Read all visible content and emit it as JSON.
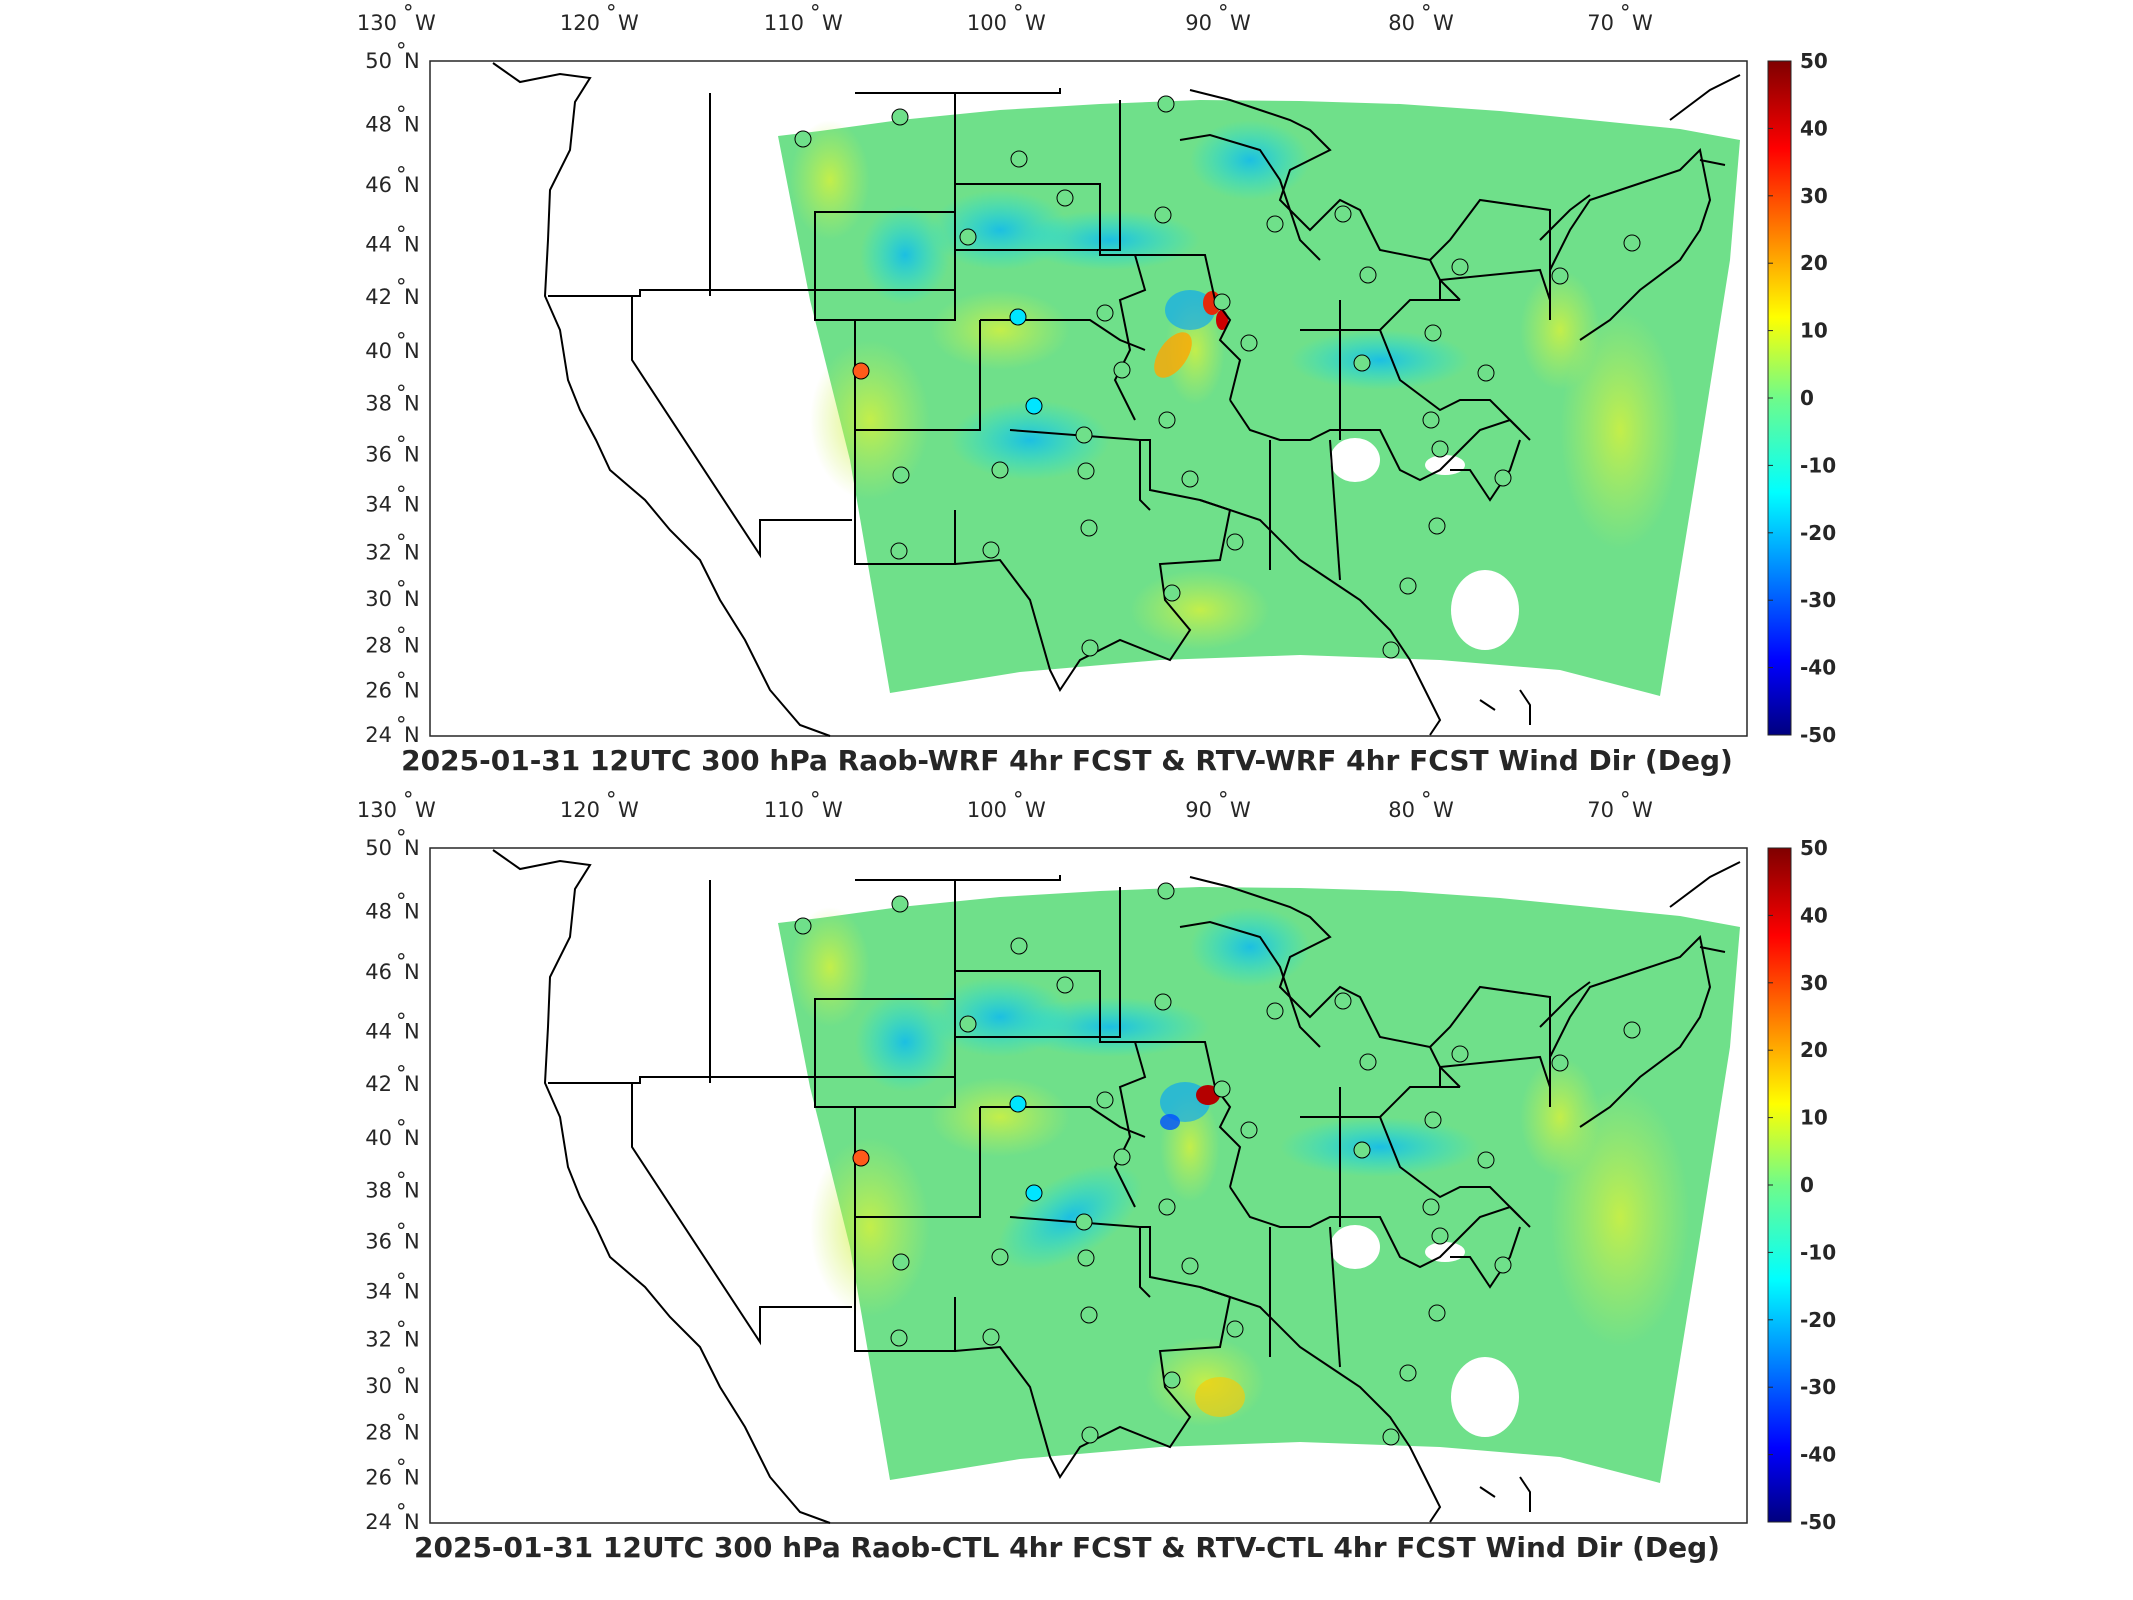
{
  "panels": [
    {
      "title": "2025-01-31 12UTC 300 hPa Raob-WRF 4hr FCST & RTV-WRF 4hr FCST Wind Dir (Deg)",
      "stations_highlight": "orange-red"
    },
    {
      "title": "2025-01-31 12UTC 300 hPa Raob-CTL 4hr FCST & RTV-CTL 4hr FCST Wind Dir (Deg)",
      "stations_highlight": "orange-red"
    }
  ],
  "lon_ticks": [
    {
      "deg": "130",
      "hem": "W"
    },
    {
      "deg": "120",
      "hem": "W"
    },
    {
      "deg": "110",
      "hem": "W"
    },
    {
      "deg": "100",
      "hem": "W"
    },
    {
      "deg": "90",
      "hem": "W"
    },
    {
      "deg": "80",
      "hem": "W"
    },
    {
      "deg": "70",
      "hem": "W"
    }
  ],
  "lat_ticks": [
    {
      "deg": "50",
      "hem": "N"
    },
    {
      "deg": "48",
      "hem": "N"
    },
    {
      "deg": "46",
      "hem": "N"
    },
    {
      "deg": "44",
      "hem": "N"
    },
    {
      "deg": "42",
      "hem": "N"
    },
    {
      "deg": "40",
      "hem": "N"
    },
    {
      "deg": "38",
      "hem": "N"
    },
    {
      "deg": "36",
      "hem": "N"
    },
    {
      "deg": "34",
      "hem": "N"
    },
    {
      "deg": "32",
      "hem": "N"
    },
    {
      "deg": "30",
      "hem": "N"
    },
    {
      "deg": "28",
      "hem": "N"
    },
    {
      "deg": "26",
      "hem": "N"
    },
    {
      "deg": "24",
      "hem": "N"
    }
  ],
  "colorbar": {
    "labels": [
      "50",
      "40",
      "30",
      "20",
      "10",
      "0",
      "-10",
      "-20",
      "-30",
      "-40",
      "-50"
    ],
    "range": [
      -50,
      50
    ],
    "colormap": "jet"
  },
  "colors": {
    "field_base": "#6fe08a",
    "station_fill": "#6fe08a",
    "station_highlight": "#ff5a1a",
    "outline": "#000000"
  }
}
